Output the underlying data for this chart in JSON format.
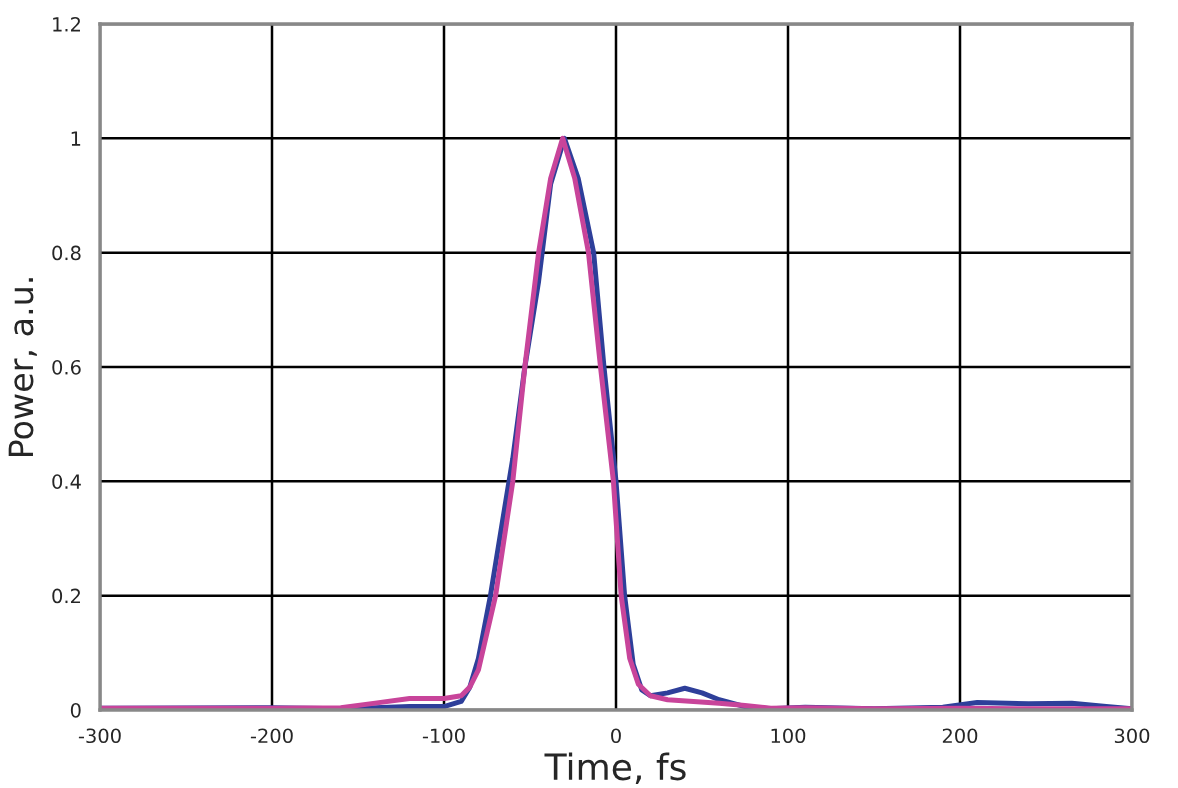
{
  "chart_data": {
    "type": "line",
    "xlabel": "Time, fs",
    "ylabel": "Power, a.u.",
    "series": [
      {
        "color": "#2e3f9a",
        "x": [
          -300,
          -200,
          -160,
          -140,
          -120,
          -100,
          -90,
          -85,
          -80,
          -73,
          -66,
          -60,
          -53,
          -45,
          -38,
          -30,
          -22,
          -13,
          -7,
          0,
          5,
          10,
          15,
          20,
          30,
          40,
          50,
          60,
          75,
          90,
          110,
          150,
          190,
          210,
          240,
          265,
          285,
          300
        ],
        "values": [
          0.003,
          0.004,
          0.002,
          0.004,
          0.006,
          0.006,
          0.015,
          0.04,
          0.09,
          0.2,
          0.33,
          0.44,
          0.6,
          0.75,
          0.92,
          1.0,
          0.93,
          0.8,
          0.6,
          0.4,
          0.2,
          0.08,
          0.035,
          0.025,
          0.03,
          0.038,
          0.03,
          0.018,
          0.006,
          0.002,
          0.005,
          0.002,
          0.005,
          0.013,
          0.011,
          0.012,
          0.006,
          0.002
        ]
      },
      {
        "color": "#c8449a",
        "x": [
          -300,
          -200,
          -160,
          -140,
          -120,
          -100,
          -90,
          -85,
          -80,
          -70,
          -60,
          -53,
          -45,
          -38,
          -31,
          -24,
          -16,
          -9,
          -1.5,
          3,
          8,
          13,
          20,
          30,
          45,
          60,
          75,
          90,
          110,
          150,
          200,
          250,
          300
        ],
        "values": [
          0.003,
          0.003,
          0.004,
          0.012,
          0.02,
          0.02,
          0.025,
          0.04,
          0.07,
          0.2,
          0.4,
          0.6,
          0.8,
          0.93,
          1.0,
          0.93,
          0.8,
          0.6,
          0.4,
          0.2,
          0.09,
          0.045,
          0.025,
          0.018,
          0.015,
          0.012,
          0.008,
          0.003,
          0.004,
          0.002,
          0.003,
          0.002,
          0.002
        ]
      }
    ],
    "xlim": [
      -300,
      300
    ],
    "ylim": [
      0,
      1.2
    ],
    "xticks": [
      -300,
      -200,
      -100,
      0,
      100,
      200,
      300
    ],
    "yticks": [
      0,
      0.2,
      0.4,
      0.6,
      0.8,
      1,
      1.2
    ],
    "grid": true,
    "marker": "none",
    "line_style": "solid"
  }
}
